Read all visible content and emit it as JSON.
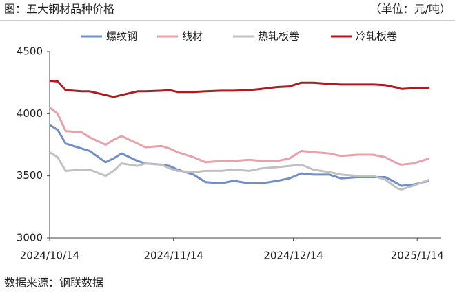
{
  "header": {
    "title": "图：五大钢材品种价格",
    "unit": "（单位：元/吨）"
  },
  "chart_data": {
    "type": "line",
    "x": [
      "2024/10/14",
      "2024/10/16",
      "2024/10/18",
      "2024/10/22",
      "2024/10/24",
      "2024/10/28",
      "2024/10/30",
      "2024/11/1",
      "2024/11/5",
      "2024/11/7",
      "2024/11/11",
      "2024/11/13",
      "2024/11/15",
      "2024/11/19",
      "2024/11/22",
      "2024/11/26",
      "2024/11/29",
      "2024/12/3",
      "2024/12/6",
      "2024/12/10",
      "2024/12/13",
      "2024/12/16",
      "2024/12/19",
      "2024/12/23",
      "2024/12/26",
      "2024/12/30",
      "2025/1/3",
      "2025/1/6",
      "2025/1/9",
      "2025/1/10",
      "2025/1/13",
      "2025/1/17"
    ],
    "series": [
      {
        "name": "螺纹钢",
        "color": "#6f8fc6",
        "values": [
          3910,
          3870,
          3760,
          3720,
          3700,
          3610,
          3640,
          3680,
          3620,
          3600,
          3590,
          3580,
          3550,
          3510,
          3450,
          3440,
          3460,
          3440,
          3440,
          3460,
          3480,
          3520,
          3510,
          3510,
          3480,
          3490,
          3490,
          3490,
          3440,
          3420,
          3430,
          3460
        ]
      },
      {
        "name": "线材",
        "color": "#e8a1aa",
        "values": [
          4050,
          4000,
          3860,
          3850,
          3810,
          3750,
          3790,
          3820,
          3760,
          3730,
          3740,
          3720,
          3690,
          3650,
          3610,
          3620,
          3620,
          3630,
          3620,
          3620,
          3640,
          3700,
          3690,
          3680,
          3660,
          3670,
          3670,
          3650,
          3600,
          3590,
          3600,
          3640
        ]
      },
      {
        "name": "热轧板卷",
        "color": "#c0c0c0",
        "values": [
          3690,
          3650,
          3540,
          3550,
          3550,
          3500,
          3540,
          3600,
          3580,
          3600,
          3590,
          3560,
          3540,
          3530,
          3540,
          3540,
          3550,
          3540,
          3560,
          3570,
          3580,
          3590,
          3550,
          3530,
          3510,
          3500,
          3500,
          3470,
          3400,
          3390,
          3420,
          3470
        ]
      },
      {
        "name": "冷轧板卷",
        "color": "#b01a1f",
        "values": [
          4265,
          4260,
          4190,
          4180,
          4180,
          4150,
          4135,
          4150,
          4180,
          4180,
          4185,
          4190,
          4175,
          4175,
          4180,
          4185,
          4185,
          4190,
          4200,
          4215,
          4220,
          4250,
          4250,
          4240,
          4235,
          4235,
          4235,
          4230,
          4210,
          4200,
          4205,
          4210
        ]
      }
    ],
    "xlim": [
      "2024/10/14",
      "2025/1/20"
    ],
    "xticks": [
      "2024/10/14",
      "2024/11/14",
      "2024/12/14",
      "2025/1/14"
    ],
    "ylim": [
      3000,
      4500
    ],
    "yticks": [
      3000,
      3500,
      4000,
      4500
    ]
  },
  "footer": {
    "source": "数据来源：钢联数据"
  }
}
